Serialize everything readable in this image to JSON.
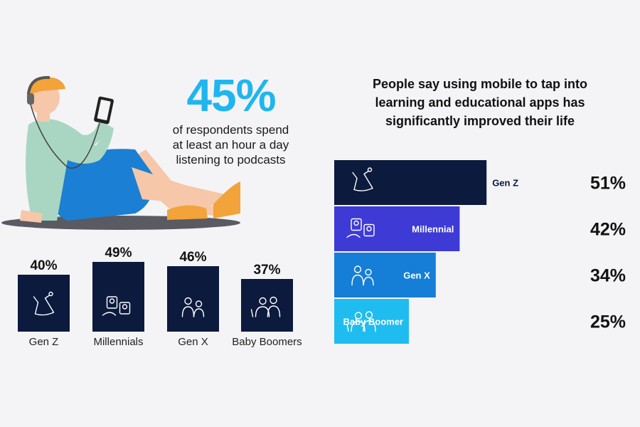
{
  "hero": {
    "value": "45%",
    "description_lines": [
      "of respondents spend",
      "at least an hour a day",
      "listening to podcasts"
    ]
  },
  "right": {
    "title_lines": [
      "People say using mobile to tap into",
      "learning and educational apps  has",
      "significantly improved their life"
    ]
  },
  "chart_data": [
    {
      "type": "bar",
      "orientation": "vertical",
      "categories": [
        "Gen Z",
        "Millennials",
        "Gen X",
        "Baby Boomers"
      ],
      "values": [
        40,
        49,
        46,
        37
      ],
      "value_labels": [
        "40%",
        "49%",
        "46%",
        "37%"
      ],
      "unit": "%",
      "title": "",
      "xlabel": "",
      "ylabel": "",
      "grid": false,
      "colors": {
        "bar": "#0c1a3d",
        "icon": "#ffffff"
      }
    },
    {
      "type": "bar",
      "orientation": "horizontal",
      "categories": [
        "Gen Z",
        "Millennial",
        "Gen X",
        "Baby Boomer"
      ],
      "values": [
        51,
        42,
        34,
        25
      ],
      "value_labels": [
        "51%",
        "42%",
        "34%",
        "25%"
      ],
      "unit": "%",
      "title": "",
      "xlabel": "",
      "ylabel": "",
      "grid": false,
      "colors": {
        "bars": [
          "#0c1a3d",
          "#3d3ad6",
          "#157ed6",
          "#1fbcef"
        ],
        "category_text": [
          "#0c1a3d",
          "#ffffff",
          "#ffffff",
          "#ffffff"
        ]
      }
    }
  ],
  "icons": {
    "left": [
      "gen-z-sitting-figure-icon",
      "millennials-video-call-icon",
      "gen-x-two-people-icon",
      "baby-boomers-couple-icon"
    ],
    "right": [
      "gen-z-sitting-figure-icon",
      "millennial-video-call-icon",
      "gen-x-two-people-icon",
      "baby-boomer-couple-icon"
    ]
  }
}
